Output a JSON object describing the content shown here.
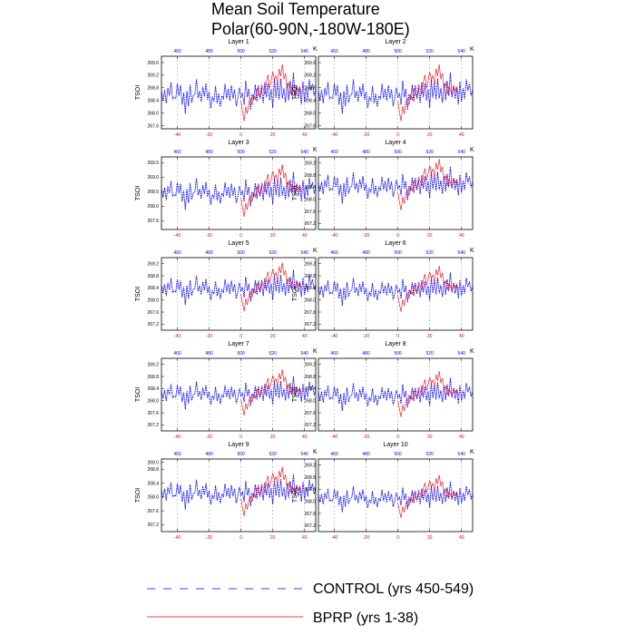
{
  "chart_data": {
    "type": "line",
    "title_lines": [
      "Mean Soil Temperature",
      "Polar(60-90N,-180W-180E)"
    ],
    "top_unit": "K",
    "ylabel": "TSOI",
    "bottom_x": {
      "ticks": [
        -40,
        -20,
        0,
        20,
        40
      ],
      "xlim": [
        -50,
        47
      ]
    },
    "top_x": {
      "ticks": [
        460,
        480,
        500,
        520,
        540
      ],
      "xlim": [
        450,
        547
      ]
    },
    "legend": [
      {
        "label": "CONTROL (yrs 450-549)",
        "color": "#0000ff",
        "style": "dashed"
      },
      {
        "label": "BPRP (yrs 1-38)",
        "color": "#ff0000",
        "style": "solid"
      }
    ],
    "control_series": [
      0.22,
      -0.1,
      0.25,
      -0.2,
      0.31,
      0.05,
      0.5,
      -0.06,
      0.0,
      -0.04,
      0.45,
      0.05,
      0.4,
      -0.25,
      0.15,
      -0.55,
      0.2,
      -0.3,
      0.42,
      -0.18,
      0.06,
      0.1,
      0.6,
      -0.02,
      0.21,
      -0.15,
      0.35,
      0.02,
      0.46,
      -0.08,
      0.18,
      -0.36,
      0.0,
      -0.12,
      0.38,
      -0.2,
      0.12,
      -0.32,
      0.05,
      -0.05,
      0.45,
      -0.04,
      0.28,
      -0.12,
      0.4,
      -0.04,
      0.26,
      -0.3,
      -0.05,
      0.32,
      0.0,
      0.12,
      -0.25,
      0.55,
      0.0,
      0.28,
      -0.42,
      0.1,
      -0.08,
      0.42,
      -0.15,
      0.4,
      -0.06,
      0.32,
      -0.2,
      0.5,
      0.0,
      0.46,
      -0.1,
      0.28,
      -0.35,
      0.6,
      -0.02,
      0.5,
      -0.08,
      0.62,
      -0.04,
      0.3,
      -0.18,
      0.46,
      -0.1,
      0.55,
      0.05,
      0.82,
      0.0,
      0.4,
      -0.05,
      0.3,
      -0.25,
      0.52,
      -0.15,
      0.3,
      -0.05,
      0.6,
      0.22,
      0.45,
      0.05,
      0.25
    ],
    "control_start": -50,
    "bprp_series": [
      -0.12,
      -0.5,
      -0.8,
      -0.3,
      -0.55,
      -0.15,
      -0.05,
      -0.25,
      0.1,
      -0.1,
      0.3,
      0.1,
      0.0,
      0.42,
      0.28,
      0.1,
      0.5,
      0.75,
      0.3,
      0.55,
      0.85,
      0.6,
      0.72,
      0.4,
      0.95,
      0.7,
      1.1,
      0.6,
      0.8,
      0.3,
      0.5,
      0.1,
      0.35,
      0.25,
      0.05,
      0.4,
      0.2,
      0.35,
      0.1
    ],
    "bprp_start": 0,
    "panels": [
      {
        "title": "Layer 1",
        "base": 268.5,
        "amp": 0.95,
        "yticks": [
          "269.6",
          "269.2",
          "268.8",
          "268.4",
          "268.0",
          "267.6"
        ],
        "ylim": [
          267.5,
          269.8
        ]
      },
      {
        "title": "Layer 2",
        "base": 268.5,
        "amp": 0.95,
        "yticks": [
          "269.6",
          "269.2",
          "268.8",
          "268.4",
          "268.0",
          "267.6"
        ],
        "ylim": [
          267.5,
          269.8
        ]
      },
      {
        "title": "Layer 3",
        "base": 268.4,
        "amp": 0.95,
        "yticks": [
          "269.5",
          "269.0",
          "268.5",
          "268.0",
          "267.5"
        ],
        "ylim": [
          267.2,
          269.7
        ]
      },
      {
        "title": "Layer 4",
        "base": 268.35,
        "amp": 0.9,
        "yticks": [
          "269.2",
          "268.8",
          "268.4",
          "268.0",
          "267.6",
          "267.2"
        ],
        "ylim": [
          267.0,
          269.4
        ]
      },
      {
        "title": "Layer 5",
        "base": 268.3,
        "amp": 0.85,
        "yticks": [
          "269.2",
          "268.8",
          "268.4",
          "268.0",
          "267.6",
          "267.2"
        ],
        "ylim": [
          267.0,
          269.4
        ]
      },
      {
        "title": "Layer 6",
        "base": 268.25,
        "amp": 0.8,
        "yticks": [
          "269.2",
          "268.8",
          "268.4",
          "268.0",
          "267.6",
          "267.2"
        ],
        "ylim": [
          267.0,
          269.4
        ]
      },
      {
        "title": "Layer 7",
        "base": 268.15,
        "amp": 0.8,
        "yticks": [
          "269.2",
          "268.8",
          "268.4",
          "268.0",
          "267.6",
          "267.2"
        ],
        "ylim": [
          267.0,
          269.4
        ]
      },
      {
        "title": "Layer 8",
        "base": 268.1,
        "amp": 0.8,
        "yticks": [
          "269.2",
          "268.8",
          "268.4",
          "268.0",
          "267.6",
          "267.2"
        ],
        "ylim": [
          267.0,
          269.4
        ]
      },
      {
        "title": "Layer 9",
        "base": 268.05,
        "amp": 0.75,
        "yticks": [
          "269.0",
          "268.8",
          "268.4",
          "268.0",
          "267.6",
          "267.2"
        ],
        "ylim": [
          267.0,
          269.1
        ]
      },
      {
        "title": "Layer 10",
        "base": 268.05,
        "amp": 0.75,
        "yticks": [
          "269.2",
          "268.8",
          "268.4",
          "268.0",
          "267.6",
          "267.2"
        ],
        "ylim": [
          267.0,
          269.4
        ]
      }
    ]
  }
}
